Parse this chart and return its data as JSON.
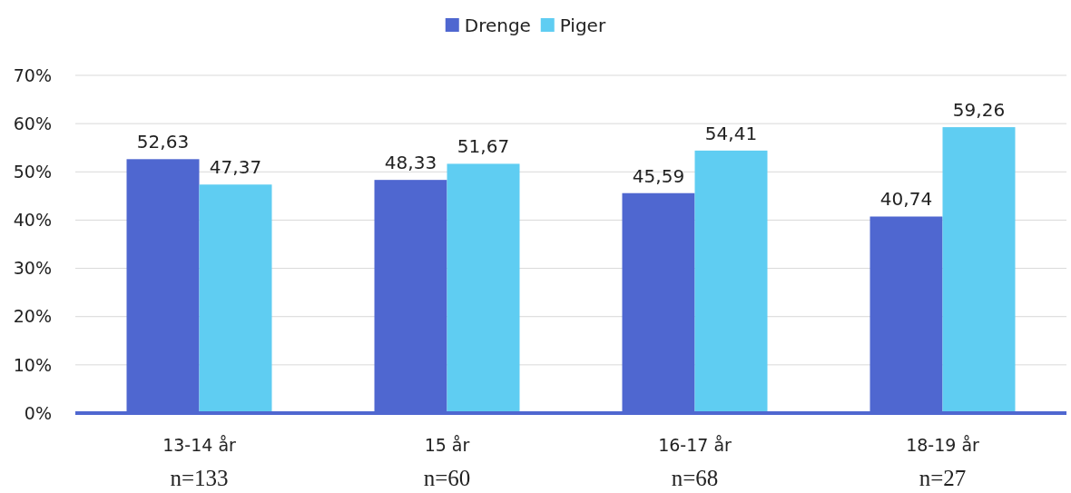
{
  "chart_data": {
    "type": "bar",
    "categories": [
      "13-14 år",
      "15 år",
      "16-17 år",
      "18-19 år"
    ],
    "series": [
      {
        "name": "Drenge",
        "color": "#4f67d0",
        "values": [
          52.63,
          48.33,
          45.59,
          40.74
        ],
        "value_labels": [
          "52,63",
          "48,33",
          "45,59",
          "40,74"
        ]
      },
      {
        "name": "Piger",
        "color": "#5fcdf2",
        "values": [
          47.37,
          51.67,
          54.41,
          59.26
        ],
        "value_labels": [
          "47,37",
          "51,67",
          "54,41",
          "59,26"
        ]
      }
    ],
    "ylim": [
      0,
      70
    ],
    "yticks": [
      {
        "value": 0,
        "label": "0%"
      },
      {
        "value": 10,
        "label": "10%"
      },
      {
        "value": 20,
        "label": "20%"
      },
      {
        "value": 30,
        "label": "30%"
      },
      {
        "value": 40,
        "label": "40%"
      },
      {
        "value": 50,
        "label": "50%"
      },
      {
        "value": 60,
        "label": "60%"
      },
      {
        "value": 70,
        "label": "70%"
      }
    ],
    "grid": "y",
    "legend": "top",
    "annotations": [
      "n=133",
      "n=60",
      "n=68",
      "n=27"
    ]
  }
}
